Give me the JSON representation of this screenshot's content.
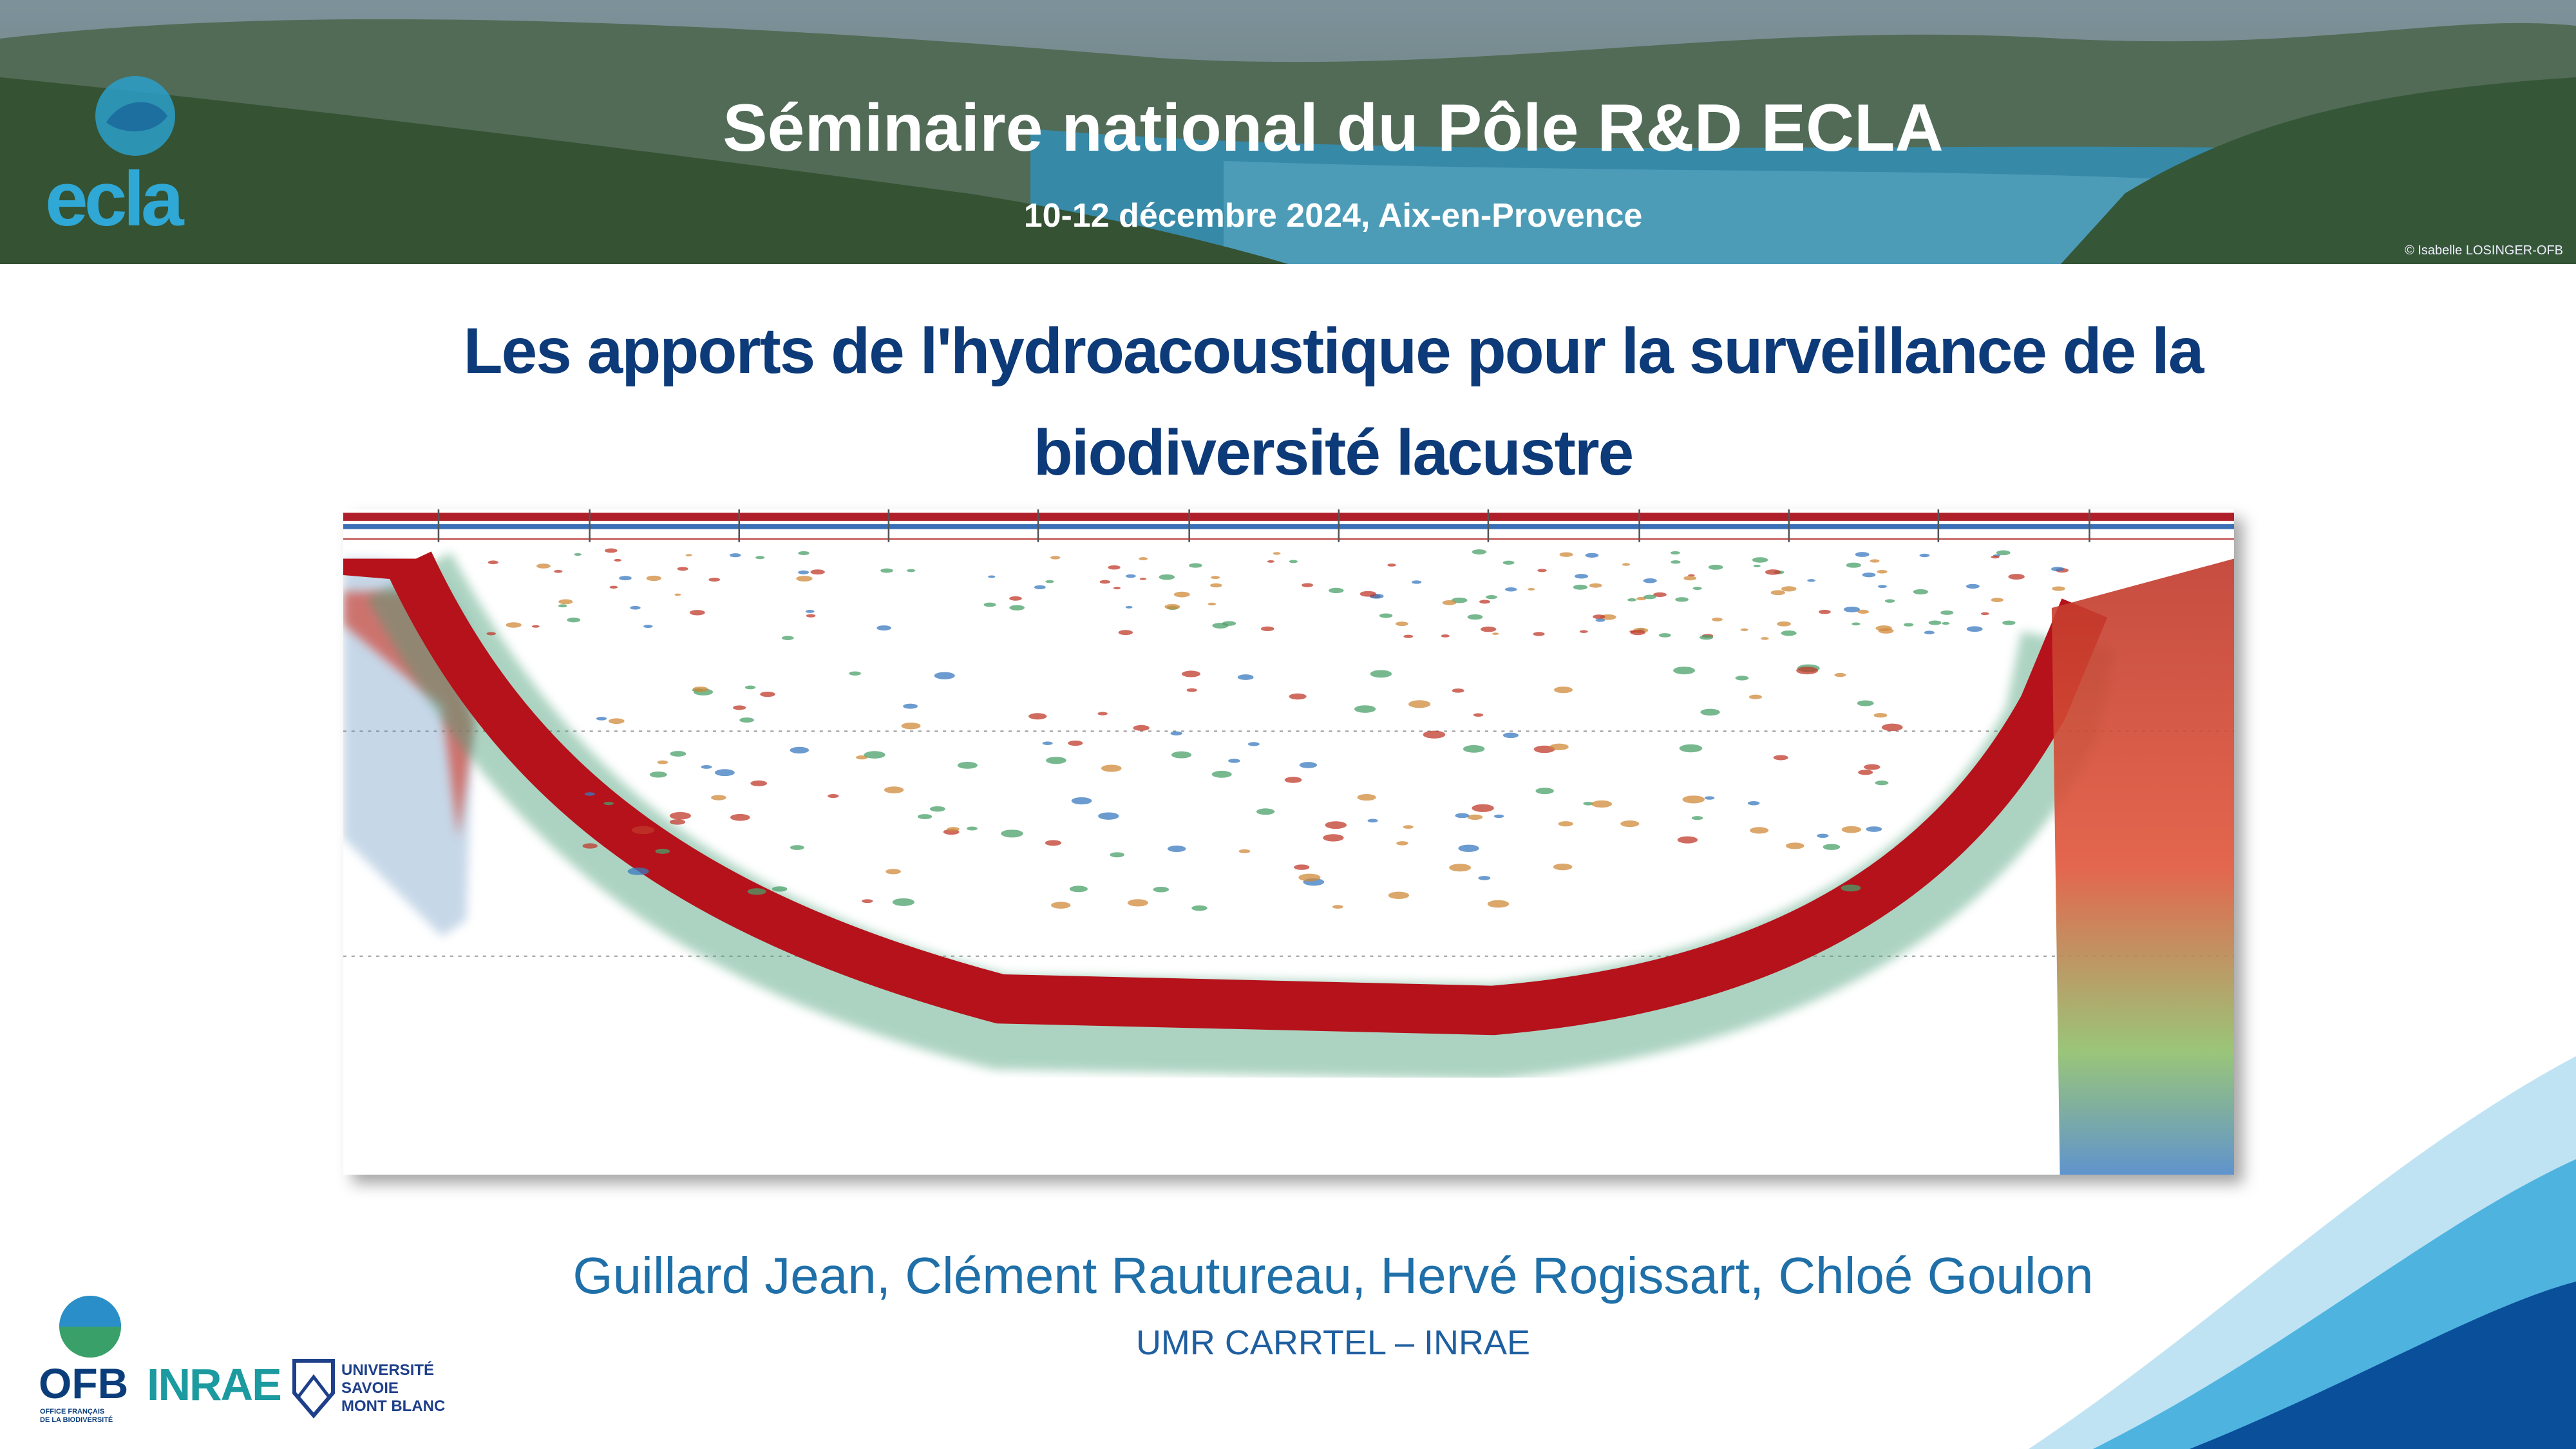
{
  "header": {
    "logo": "ecla",
    "title": "Séminaire national du Pôle R&D ECLA",
    "subtitle": "10-12 décembre 2024, Aix-en-Provence",
    "photo_credit": "© Isabelle LOSINGER-OFB"
  },
  "slide": {
    "title_lines": [
      "Les apports de l'hydroacoustique pour la surveillance de la",
      "biodiversité lacustre"
    ],
    "authors": "Guillard Jean, Clément Rautureau, Hervé Rogissart,  Chloé Goulon",
    "affiliation": "UMR CARRTEL – INRAE"
  },
  "logos": {
    "ofb": "OFB",
    "ofb_full_lines": [
      "OFFICE FRANÇAIS",
      "DE LA BIODIVERSITÉ"
    ],
    "inrae": "INRAE",
    "usmb_lines": [
      "UNIVERSITÉ",
      "SAVOIE",
      "MONT BLANC"
    ]
  }
}
